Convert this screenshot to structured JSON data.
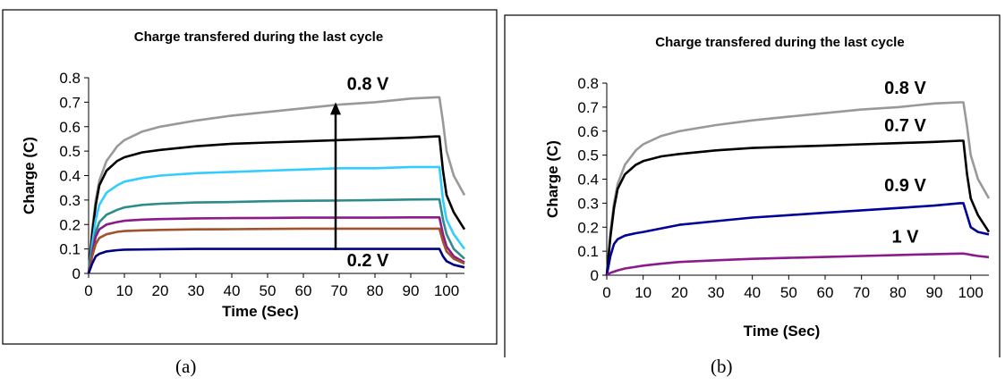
{
  "chart_data": [
    {
      "type": "line",
      "title": "Charge transfered during the last cycle",
      "xlabel": "Time (Sec)",
      "ylabel": "Charge (C)",
      "xlim": [
        0,
        105
      ],
      "ylim": [
        0,
        0.8
      ],
      "xticks": [
        "0",
        "10",
        "20",
        "30",
        "40",
        "50",
        "60",
        "70",
        "80",
        "90",
        "100"
      ],
      "yticks": [
        "0",
        "0.1",
        "0.2",
        "0.3",
        "0.4",
        "0.5",
        "0.6",
        "0.7",
        "0.8"
      ],
      "grid": false,
      "legend": "none",
      "series": [
        {
          "color": "#999999",
          "x": [
            0,
            1,
            2,
            3,
            5,
            8,
            10,
            15,
            20,
            30,
            40,
            50,
            60,
            70,
            80,
            90,
            97,
            98,
            99,
            100,
            102,
            105
          ],
          "y": [
            0,
            0.18,
            0.3,
            0.38,
            0.46,
            0.52,
            0.545,
            0.58,
            0.6,
            0.625,
            0.645,
            0.66,
            0.675,
            0.69,
            0.7,
            0.715,
            0.72,
            0.72,
            0.62,
            0.5,
            0.4,
            0.32
          ]
        },
        {
          "color": "#000000",
          "x": [
            0,
            1,
            2,
            3,
            5,
            8,
            10,
            15,
            20,
            30,
            40,
            50,
            60,
            70,
            80,
            90,
            97,
            98,
            99,
            100,
            102,
            105
          ],
          "y": [
            0,
            0.16,
            0.28,
            0.36,
            0.42,
            0.46,
            0.475,
            0.495,
            0.505,
            0.52,
            0.53,
            0.535,
            0.54,
            0.545,
            0.55,
            0.555,
            0.56,
            0.56,
            0.42,
            0.32,
            0.25,
            0.18
          ]
        },
        {
          "color": "#33CCFF",
          "x": [
            0,
            1,
            2,
            3,
            5,
            8,
            10,
            15,
            20,
            30,
            40,
            50,
            60,
            70,
            80,
            90,
            97,
            98,
            99,
            100,
            102,
            105
          ],
          "y": [
            0,
            0.12,
            0.22,
            0.28,
            0.33,
            0.36,
            0.375,
            0.39,
            0.4,
            0.41,
            0.415,
            0.42,
            0.425,
            0.43,
            0.43,
            0.435,
            0.435,
            0.435,
            0.3,
            0.22,
            0.16,
            0.1
          ]
        },
        {
          "color": "#2E8B8B",
          "x": [
            0,
            1,
            2,
            3,
            5,
            8,
            10,
            15,
            20,
            30,
            40,
            50,
            60,
            70,
            80,
            90,
            97,
            98,
            99,
            100,
            102,
            105
          ],
          "y": [
            0,
            0.09,
            0.17,
            0.21,
            0.24,
            0.26,
            0.27,
            0.28,
            0.285,
            0.29,
            0.292,
            0.295,
            0.297,
            0.298,
            0.3,
            0.302,
            0.303,
            0.303,
            0.22,
            0.16,
            0.1,
            0.06
          ]
        },
        {
          "color": "#8B1A8B",
          "x": [
            0,
            1,
            2,
            3,
            5,
            8,
            10,
            15,
            20,
            30,
            40,
            50,
            60,
            70,
            80,
            90,
            97,
            98,
            99,
            100,
            102,
            105
          ],
          "y": [
            0,
            0.08,
            0.15,
            0.18,
            0.2,
            0.21,
            0.215,
            0.22,
            0.222,
            0.225,
            0.226,
            0.227,
            0.228,
            0.228,
            0.228,
            0.229,
            0.229,
            0.229,
            0.16,
            0.11,
            0.07,
            0.045
          ]
        },
        {
          "color": "#A0522D",
          "x": [
            0,
            1,
            2,
            3,
            5,
            8,
            10,
            15,
            20,
            30,
            40,
            50,
            60,
            70,
            80,
            90,
            97,
            98,
            99,
            100,
            102,
            105
          ],
          "y": [
            0,
            0.07,
            0.12,
            0.145,
            0.16,
            0.17,
            0.173,
            0.176,
            0.178,
            0.18,
            0.181,
            0.182,
            0.183,
            0.183,
            0.183,
            0.183,
            0.183,
            0.183,
            0.13,
            0.09,
            0.06,
            0.04
          ]
        },
        {
          "color": "#000080",
          "x": [
            0,
            1,
            2,
            3,
            5,
            8,
            10,
            15,
            20,
            30,
            40,
            50,
            60,
            70,
            80,
            90,
            97,
            98,
            99,
            100,
            102,
            105
          ],
          "y": [
            0,
            0.04,
            0.07,
            0.08,
            0.09,
            0.095,
            0.097,
            0.098,
            0.099,
            0.1,
            0.1,
            0.1,
            0.1,
            0.1,
            0.1,
            0.1,
            0.1,
            0.1,
            0.07,
            0.05,
            0.035,
            0.025
          ]
        }
      ],
      "annotations": [
        {
          "text": "0.8 V",
          "x": 78,
          "y": 0.75
        },
        {
          "text": "0.2 V",
          "x": 78,
          "y": 0.03
        }
      ],
      "arrow": {
        "from": [
          69,
          0.095
        ],
        "to": [
          69,
          0.7
        ]
      },
      "caption": "(a)"
    },
    {
      "type": "line",
      "title": "Charge transfered during the last cycle",
      "xlabel": "Time (Sec)",
      "ylabel": "Charge (C)",
      "xlim": [
        0,
        105
      ],
      "ylim": [
        0,
        0.8
      ],
      "xticks": [
        "0",
        "10",
        "20",
        "30",
        "40",
        "50",
        "60",
        "70",
        "80",
        "90",
        "100"
      ],
      "yticks": [
        "0",
        "0.1",
        "0.2",
        "0.3",
        "0.4",
        "0.5",
        "0.6",
        "0.7",
        "0.8"
      ],
      "grid": false,
      "legend": "none",
      "series": [
        {
          "color": "#999999",
          "x": [
            0,
            1,
            2,
            3,
            5,
            8,
            10,
            15,
            20,
            30,
            40,
            50,
            60,
            70,
            80,
            90,
            97,
            98,
            99,
            100,
            102,
            105
          ],
          "y": [
            0,
            0.18,
            0.3,
            0.38,
            0.46,
            0.52,
            0.545,
            0.58,
            0.6,
            0.625,
            0.645,
            0.66,
            0.675,
            0.69,
            0.7,
            0.715,
            0.72,
            0.72,
            0.62,
            0.5,
            0.4,
            0.32
          ]
        },
        {
          "color": "#000000",
          "x": [
            0,
            1,
            2,
            3,
            5,
            8,
            10,
            15,
            20,
            30,
            40,
            50,
            60,
            70,
            80,
            90,
            97,
            98,
            99,
            100,
            102,
            105
          ],
          "y": [
            0,
            0.16,
            0.28,
            0.36,
            0.42,
            0.46,
            0.475,
            0.495,
            0.505,
            0.52,
            0.53,
            0.535,
            0.54,
            0.545,
            0.55,
            0.555,
            0.56,
            0.56,
            0.42,
            0.32,
            0.25,
            0.18
          ]
        },
        {
          "color": "#000099",
          "x": [
            0,
            1,
            2,
            3,
            5,
            8,
            10,
            15,
            20,
            30,
            40,
            50,
            60,
            70,
            80,
            90,
            97,
            98,
            99,
            100,
            102,
            105
          ],
          "y": [
            0,
            0.08,
            0.13,
            0.15,
            0.165,
            0.175,
            0.18,
            0.195,
            0.21,
            0.225,
            0.24,
            0.25,
            0.26,
            0.27,
            0.28,
            0.29,
            0.3,
            0.3,
            0.25,
            0.2,
            0.18,
            0.17
          ]
        },
        {
          "color": "#8B1A8B",
          "x": [
            0,
            1,
            2,
            3,
            5,
            8,
            10,
            15,
            20,
            30,
            40,
            50,
            60,
            70,
            80,
            90,
            97,
            98,
            99,
            100,
            102,
            105
          ],
          "y": [
            0,
            0.01,
            0.015,
            0.02,
            0.028,
            0.035,
            0.04,
            0.048,
            0.055,
            0.062,
            0.068,
            0.072,
            0.076,
            0.08,
            0.084,
            0.088,
            0.09,
            0.09,
            0.088,
            0.085,
            0.08,
            0.075
          ]
        }
      ],
      "annotations": [
        {
          "text": "0.8 V",
          "x": 82,
          "y": 0.755
        },
        {
          "text": "0.7 V",
          "x": 82,
          "y": 0.6
        },
        {
          "text": "0.9 V",
          "x": 82,
          "y": 0.35
        },
        {
          "text": "1 V",
          "x": 82,
          "y": 0.135
        }
      ],
      "caption": "(b)"
    }
  ]
}
